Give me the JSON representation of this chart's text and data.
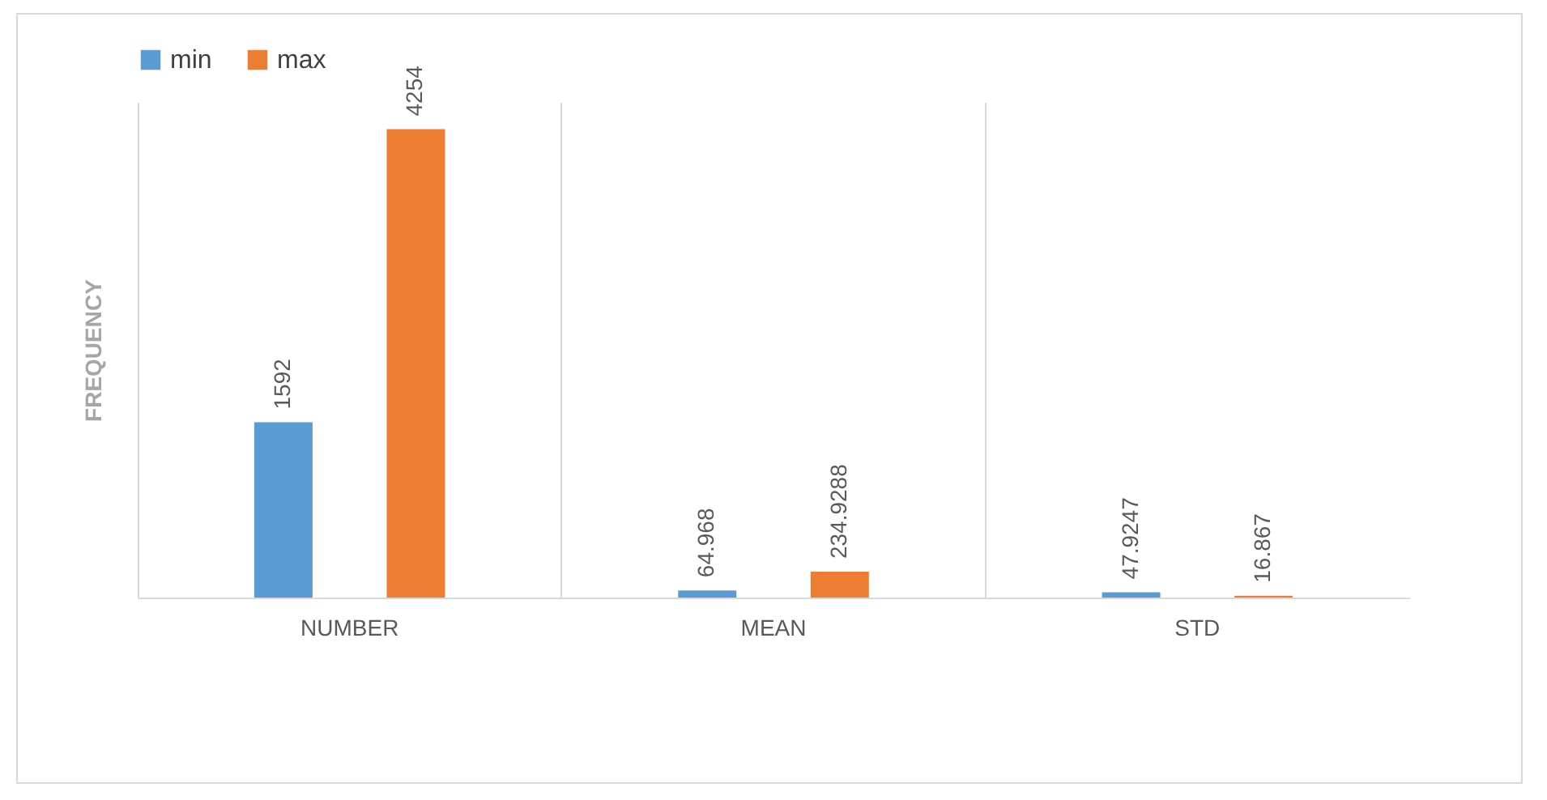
{
  "chart_data": {
    "type": "bar",
    "ylabel": "FREQUENCY",
    "categories": [
      "NUMBER",
      "MEAN",
      "STD"
    ],
    "series": [
      {
        "name": "min",
        "color": "#5b9bd5",
        "values": [
          1592,
          64.968,
          47.9247
        ]
      },
      {
        "name": "max",
        "color": "#ed7d31",
        "values": [
          4254,
          234.9288,
          16.867
        ]
      }
    ],
    "data_labels": true,
    "legend": "top",
    "grid": "x"
  }
}
